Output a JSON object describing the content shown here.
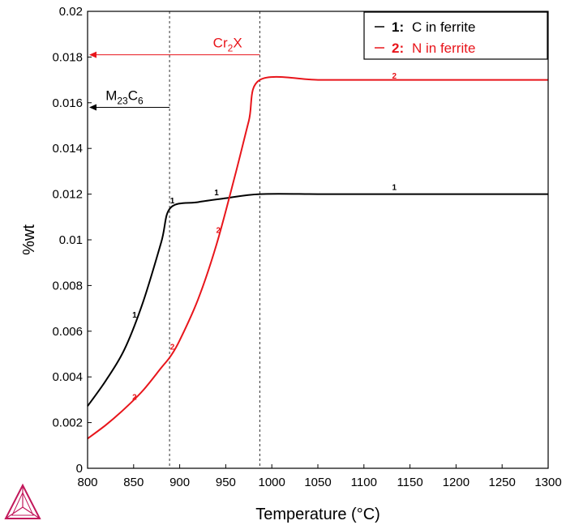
{
  "chart_data": {
    "type": "line",
    "title": "",
    "xlabel": "Temperature (°C)",
    "ylabel": "%wt",
    "xlim": [
      800,
      1300
    ],
    "ylim": [
      0,
      0.02
    ],
    "xticks": [
      800,
      850,
      900,
      950,
      1000,
      1050,
      1100,
      1150,
      1200,
      1250,
      1300
    ],
    "yticks": [
      "0",
      "0.002",
      "0.004",
      "0.006",
      "0.008",
      "0.01",
      "0.012",
      "0.014",
      "0.016",
      "0.018",
      "0.02"
    ],
    "grid": false,
    "legend_position": "top-right",
    "series": [
      {
        "name": "C in ferrite",
        "legend_index": "1:",
        "color": "#000000",
        "x": [
          800,
          820,
          840,
          860,
          880,
          890,
          920,
          950,
          987,
          1050,
          1100,
          1150,
          1200,
          1250,
          1300
        ],
        "y": [
          0.00272,
          0.00385,
          0.0052,
          0.00725,
          0.0099,
          0.0114,
          0.01165,
          0.01182,
          0.012,
          0.012,
          0.012,
          0.012,
          0.012,
          0.012,
          0.012
        ],
        "curve_labels": [
          {
            "text": "1",
            "x": 851,
            "y": 0.0066
          },
          {
            "text": "1",
            "x": 892,
            "y": 0.0116
          },
          {
            "text": "1",
            "x": 940,
            "y": 0.01195
          },
          {
            "text": "1",
            "x": 1133,
            "y": 0.01218
          }
        ]
      },
      {
        "name": "N in ferrite",
        "legend_index": "2:",
        "color": "#e8151b",
        "x": [
          800,
          820,
          840,
          860,
          880,
          890,
          900,
          920,
          940,
          960,
          975,
          987,
          1050,
          1100,
          1150,
          1200,
          1250,
          1300
        ],
        "y": [
          0.0013,
          0.0019,
          0.0026,
          0.0034,
          0.0044,
          0.0049,
          0.0056,
          0.0074,
          0.0098,
          0.0128,
          0.0152,
          0.017,
          0.017,
          0.017,
          0.017,
          0.017,
          0.017,
          0.017
        ],
        "curve_labels": [
          {
            "text": "2",
            "x": 851,
            "y": 0.003
          },
          {
            "text": "2",
            "x": 892,
            "y": 0.0052
          },
          {
            "text": "2",
            "x": 942,
            "y": 0.0103
          },
          {
            "text": "2",
            "x": 1133,
            "y": 0.01705
          }
        ]
      }
    ],
    "vertical_lines": [
      {
        "x": 889,
        "style": "dashed",
        "color": "#333333"
      },
      {
        "x": 987,
        "style": "dashed",
        "color": "#333333"
      }
    ],
    "annotations": [
      {
        "name": "cr2x",
        "base": "Cr",
        "sub": "2",
        "tail": "X",
        "color": "#e8151b",
        "arrow_from_x": 987,
        "arrow_to_x": 800,
        "y": 0.0181,
        "label_x": 952
      },
      {
        "name": "m23c6",
        "base": "M",
        "sub": "23",
        "tail": "C",
        "sub2": "6",
        "color": "#000000",
        "arrow_from_x": 889,
        "arrow_to_x": 800,
        "y": 0.0158,
        "label_x": 840
      }
    ]
  },
  "logo": {
    "name": "thermo-calc-logo",
    "color": "#c2185b"
  }
}
